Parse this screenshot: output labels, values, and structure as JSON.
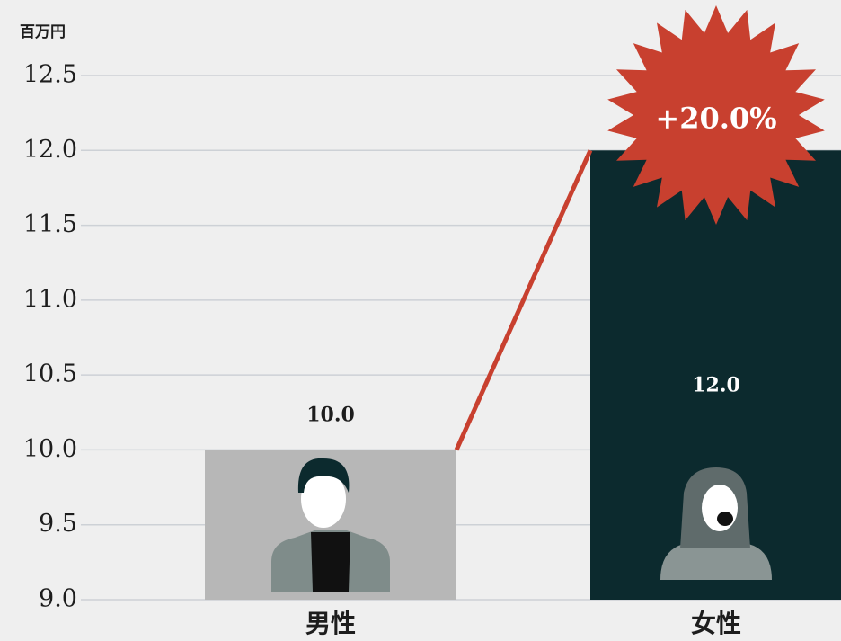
{
  "chart_data": {
    "type": "bar",
    "y_axis_label": "百万円",
    "categories": [
      "男性",
      "女性"
    ],
    "values": [
      10.0,
      12.0
    ],
    "value_labels": [
      "10.0",
      "12.0"
    ],
    "colors": [
      "#b7b7b7",
      "#0c2a2e"
    ],
    "annotation": "+20.0%",
    "annotation_color": "#c8402f",
    "ylim": [
      9.0,
      12.5
    ],
    "yticks": [
      {
        "value": 9,
        "label": "9.0"
      },
      {
        "value": 9.5,
        "label": "9.5"
      },
      {
        "value": 10,
        "label": "10.0"
      },
      {
        "value": 10.5,
        "label": "10.5"
      },
      {
        "value": 11,
        "label": "11.0"
      },
      {
        "value": 11.5,
        "label": "11.5"
      },
      {
        "value": 12,
        "label": "12.0"
      },
      {
        "value": 12.5,
        "label": "12.5"
      }
    ],
    "grid": true
  }
}
